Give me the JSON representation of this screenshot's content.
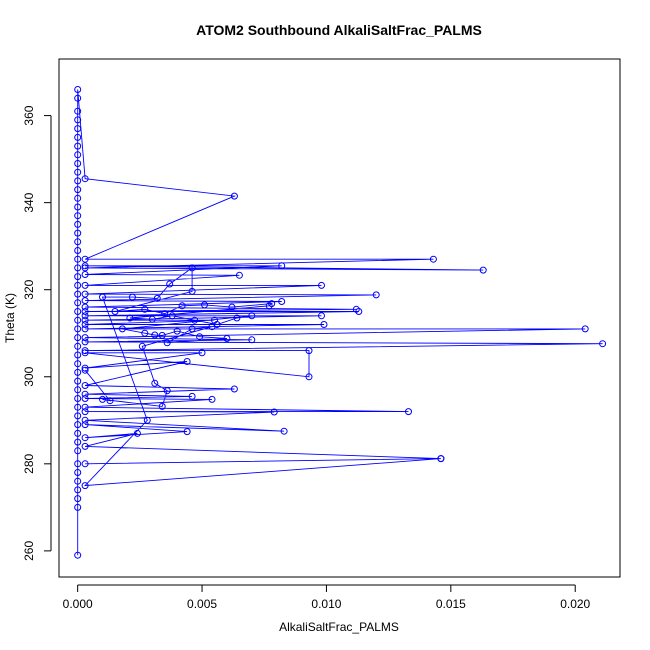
{
  "chart_data": {
    "type": "line",
    "title": "ATOM2 Southbound AlkaliSaltFrac_PALMS",
    "xlabel": "AlkaliSaltFrac_PALMS",
    "ylabel": "Theta (K)",
    "xlim": [
      -0.00075,
      0.0218
    ],
    "ylim": [
      254,
      373
    ],
    "xticks": [
      0,
      0.005,
      0.01,
      0.015,
      0.02
    ],
    "xtick_labels": [
      "0.000",
      "0.005",
      "0.010",
      "0.015",
      "0.020"
    ],
    "yticks": [
      260,
      280,
      300,
      320,
      340,
      360
    ],
    "ytick_labels": [
      "260",
      "280",
      "300",
      "320",
      "340",
      "360"
    ],
    "grid": false,
    "series": [
      {
        "color": "#0000ff",
        "marker": "open-circle",
        "points": [
          [
            0,
            259
          ],
          [
            0,
            270
          ],
          [
            0,
            272
          ],
          [
            0,
            274
          ],
          [
            0,
            276
          ],
          [
            0,
            278
          ],
          [
            0,
            280
          ],
          [
            0,
            283
          ],
          [
            0,
            285
          ],
          [
            0,
            287
          ],
          [
            0,
            289
          ],
          [
            0,
            291
          ],
          [
            0,
            293
          ],
          [
            0,
            295
          ],
          [
            0,
            297
          ],
          [
            0,
            299
          ],
          [
            0,
            301
          ],
          [
            0,
            303
          ],
          [
            0,
            305
          ],
          [
            0,
            307
          ],
          [
            0,
            309
          ],
          [
            0,
            311
          ],
          [
            0,
            313
          ],
          [
            0,
            315
          ],
          [
            0,
            317
          ],
          [
            0,
            319
          ],
          [
            0,
            321
          ],
          [
            0,
            323
          ],
          [
            0,
            325
          ],
          [
            0,
            327
          ],
          [
            0,
            329
          ],
          [
            0,
            331
          ],
          [
            0,
            333
          ],
          [
            0,
            335
          ],
          [
            0,
            337
          ],
          [
            0,
            339
          ],
          [
            0,
            341
          ],
          [
            0,
            343
          ],
          [
            0,
            345
          ],
          [
            0,
            347
          ],
          [
            0,
            349
          ],
          [
            0,
            351
          ],
          [
            0,
            353
          ],
          [
            0,
            355
          ],
          [
            0,
            357
          ],
          [
            0,
            359
          ],
          [
            0,
            361
          ],
          [
            0,
            364
          ],
          [
            0,
            366
          ],
          [
            0.0003,
            345.5
          ],
          [
            0.0063,
            341.5
          ],
          [
            0.0003,
            327
          ],
          [
            0.0143,
            327
          ],
          [
            0.0003,
            325
          ],
          [
            0.0163,
            324.5
          ],
          [
            0.0003,
            325.5
          ],
          [
            0.0082,
            325.5
          ],
          [
            0.0003,
            323.5
          ],
          [
            0.0065,
            323.3
          ],
          [
            0.0003,
            321
          ],
          [
            0.0098,
            321
          ],
          [
            0.0003,
            319
          ],
          [
            0.012,
            318.8
          ],
          [
            0.0003,
            317.5
          ],
          [
            0.0082,
            317.3
          ],
          [
            0.0003,
            316
          ],
          [
            0.0112,
            315.5
          ],
          [
            0.0003,
            315
          ],
          [
            0.0113,
            315
          ],
          [
            0.0003,
            314
          ],
          [
            0.0098,
            314
          ],
          [
            0.0003,
            313
          ],
          [
            0.0055,
            313
          ],
          [
            0.0003,
            312
          ],
          [
            0.0099,
            312
          ],
          [
            0.0003,
            311
          ],
          [
            0.0204,
            311
          ],
          [
            0.0003,
            309
          ],
          [
            0.007,
            308.5
          ],
          [
            0.0003,
            308
          ],
          [
            0.0211,
            307.6
          ],
          [
            0.0003,
            306
          ],
          [
            0.0093,
            306
          ],
          [
            0.0093,
            300
          ],
          [
            0.0003,
            305.5
          ],
          [
            0.005,
            305.5
          ],
          [
            0.0003,
            302
          ],
          [
            0.0044,
            303.5
          ],
          [
            0.0003,
            298
          ],
          [
            0.0063,
            297.2
          ],
          [
            0.0003,
            296
          ],
          [
            0.0046,
            295.5
          ],
          [
            0.0003,
            295
          ],
          [
            0.0054,
            294.8
          ],
          [
            0.0003,
            293
          ],
          [
            0.0133,
            292
          ],
          [
            0.0003,
            292
          ],
          [
            0.0079,
            291.9
          ],
          [
            0.0003,
            290
          ],
          [
            0.0083,
            287.5
          ],
          [
            0.0003,
            289
          ],
          [
            0.0044,
            287.4
          ],
          [
            0.0003,
            286
          ],
          [
            0.0024,
            287
          ],
          [
            0.0003,
            284
          ],
          [
            0.0146,
            281.2
          ],
          [
            0.0003,
            280
          ],
          [
            0.0146,
            281.2
          ],
          [
            0.0003,
            275
          ],
          [
            0.0028,
            290
          ],
          [
            0.001,
            318.3
          ],
          [
            0.0022,
            318.3
          ],
          [
            0.0032,
            318
          ],
          [
            0.0037,
            321.3
          ],
          [
            0.0046,
            325
          ],
          [
            0.0046,
            319.6
          ],
          [
            0.0015,
            315
          ],
          [
            0.0027,
            315.5
          ],
          [
            0.0035,
            314.5
          ],
          [
            0.0042,
            316.3
          ],
          [
            0.0051,
            316.5
          ],
          [
            0.0062,
            316
          ],
          [
            0.0078,
            316.8
          ],
          [
            0.0077,
            316.3
          ],
          [
            0.0021,
            313.5
          ],
          [
            0.003,
            313.2
          ],
          [
            0.0038,
            314
          ],
          [
            0.0047,
            313
          ],
          [
            0.0056,
            312
          ],
          [
            0.0064,
            313.5
          ],
          [
            0.007,
            314
          ],
          [
            0.0018,
            311
          ],
          [
            0.0027,
            310
          ],
          [
            0.0031,
            309.6
          ],
          [
            0.0034,
            309.5
          ],
          [
            0.004,
            310.5
          ],
          [
            0.0049,
            309.2
          ],
          [
            0.006,
            308.8
          ],
          [
            0.0036,
            307.8
          ],
          [
            0.0046,
            311
          ],
          [
            0.0054,
            311.5
          ],
          [
            0.0026,
            307
          ],
          [
            0.0031,
            298.5
          ],
          [
            0.0036,
            296.8
          ],
          [
            0.0034,
            293.2
          ],
          [
            0.001,
            294.8
          ],
          [
            0.0013,
            294.5
          ],
          [
            0.0003,
            301.5
          ]
        ]
      }
    ]
  }
}
